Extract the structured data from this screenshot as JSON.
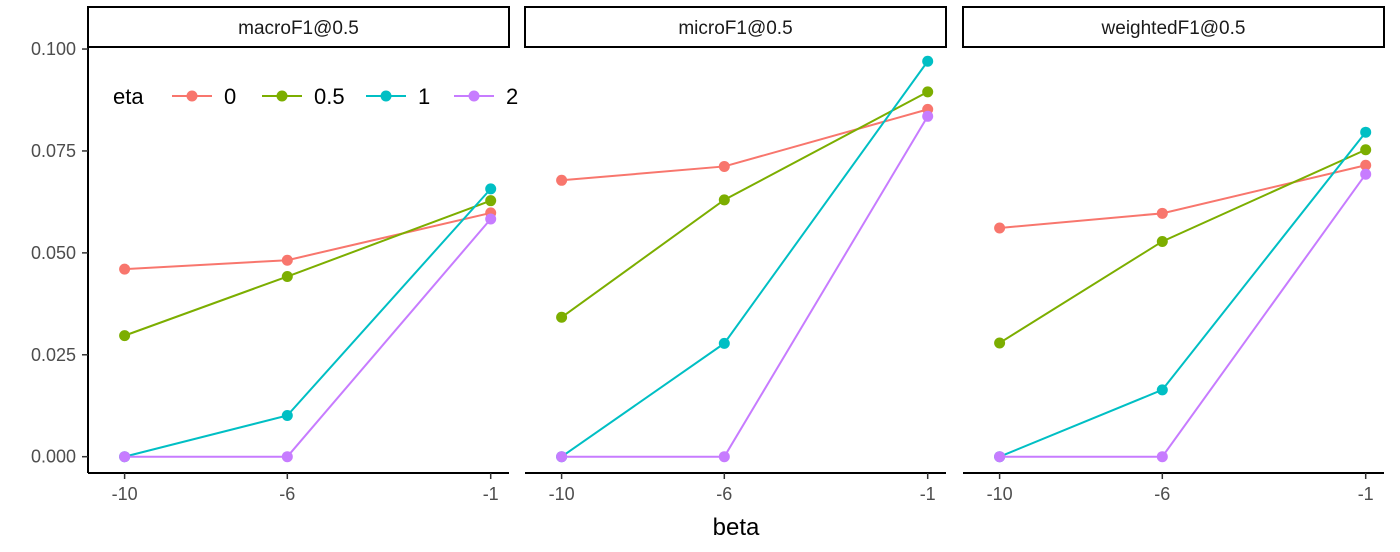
{
  "chart_data": {
    "type": "line",
    "xlabel": "beta",
    "ylabel": "",
    "x": [
      -10,
      -6,
      -1
    ],
    "x_tick_labels": [
      "-10",
      "-6",
      "-1"
    ],
    "ylim": [
      -0.004,
      0.1005
    ],
    "y_ticks": [
      0.0,
      0.025,
      0.05,
      0.075,
      0.1
    ],
    "y_tick_labels": [
      "0.000",
      "0.025",
      "0.050",
      "0.075",
      "0.100"
    ],
    "grid": false,
    "legend": {
      "title": "eta",
      "placement": "top-left-inside",
      "entries": [
        {
          "label": "0",
          "color": "#F8766D"
        },
        {
          "label": "0.5",
          "color": "#7CAE00"
        },
        {
          "label": "1",
          "color": "#00BFC4"
        },
        {
          "label": "2",
          "color": "#C77CFF"
        }
      ]
    },
    "facets": [
      {
        "title": "macroF1@0.5",
        "series": [
          {
            "name": "0",
            "color": "#F8766D",
            "values": [
              0.046,
              0.0482,
              0.0598
            ]
          },
          {
            "name": "0.5",
            "color": "#7CAE00",
            "values": [
              0.0297,
              0.0442,
              0.0628
            ]
          },
          {
            "name": "1",
            "color": "#00BFC4",
            "values": [
              0.0,
              0.0101,
              0.0657
            ]
          },
          {
            "name": "2",
            "color": "#C77CFF",
            "values": [
              0.0,
              0.0,
              0.0583
            ]
          }
        ]
      },
      {
        "title": "microF1@0.5",
        "series": [
          {
            "name": "0",
            "color": "#F8766D",
            "values": [
              0.0678,
              0.0712,
              0.0852
            ]
          },
          {
            "name": "0.5",
            "color": "#7CAE00",
            "values": [
              0.0342,
              0.063,
              0.0895
            ]
          },
          {
            "name": "1",
            "color": "#00BFC4",
            "values": [
              0.0,
              0.0278,
              0.097
            ]
          },
          {
            "name": "2",
            "color": "#C77CFF",
            "values": [
              0.0,
              0.0,
              0.0835
            ]
          }
        ]
      },
      {
        "title": "weightedF1@0.5",
        "series": [
          {
            "name": "0",
            "color": "#F8766D",
            "values": [
              0.0561,
              0.0597,
              0.0715
            ]
          },
          {
            "name": "0.5",
            "color": "#7CAE00",
            "values": [
              0.0279,
              0.0528,
              0.0753
            ]
          },
          {
            "name": "1",
            "color": "#00BFC4",
            "values": [
              0.0,
              0.0164,
              0.0796
            ]
          },
          {
            "name": "2",
            "color": "#C77CFF",
            "values": [
              0.0,
              0.0,
              0.0693
            ]
          }
        ]
      }
    ]
  }
}
